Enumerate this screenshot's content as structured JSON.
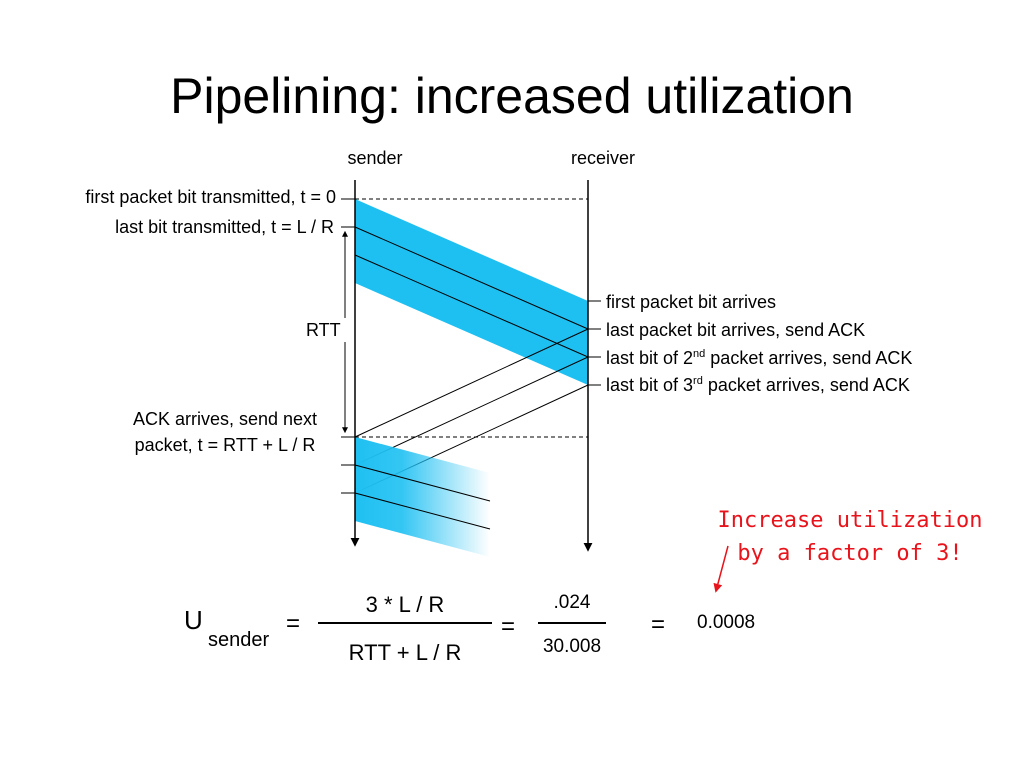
{
  "slide": {
    "title": "Pipelining: increased utilization"
  },
  "diagram": {
    "sender_label": "sender",
    "receiver_label": "receiver",
    "left_labels": {
      "first_bit": "first packet bit transmitted, t = 0",
      "last_bit": "last bit transmitted, t = L / R",
      "rtt": "RTT",
      "ack_line1": "ACK arrives, send next",
      "ack_line2": "packet, t = RTT + L / R"
    },
    "right_labels": {
      "first_arrives": "first packet bit arrives",
      "last_arrives": "last packet bit arrives, send ACK",
      "second_pre": "last bit of 2",
      "second_sup": "nd",
      "second_post": " packet arrives, send ACK",
      "third_pre": "last bit of 3",
      "third_sup": "rd",
      "third_post": " packet arrives, send ACK"
    },
    "colors": {
      "packet": "#1ec0f2",
      "annotation": "#e8131b"
    }
  },
  "annotation": {
    "line1": "Increase utilization",
    "line2": "by a factor of 3!"
  },
  "formula": {
    "u": "U",
    "subscript": "sender",
    "eq1": "=",
    "numerator": "3 * L / R",
    "denominator": "RTT + L / R",
    "eq2": "=",
    "num_value": ".024",
    "den_value": "30.008",
    "eq3": "=",
    "result": "0.0008"
  }
}
